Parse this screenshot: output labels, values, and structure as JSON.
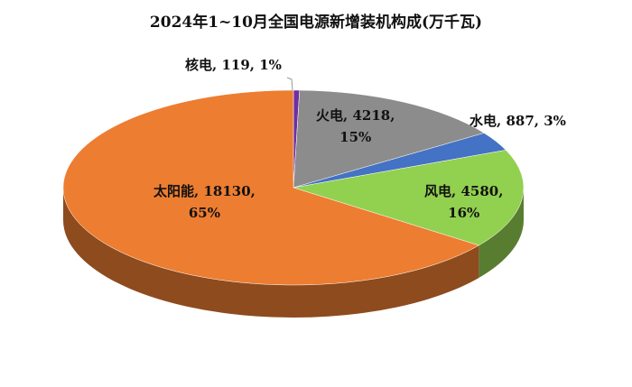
{
  "chart_data": {
    "type": "pie",
    "title": "2024年1~10月全国电源新增装机构成(万千瓦)",
    "three_d": true,
    "start": "12 o'clock, clockwise",
    "slices": [
      {
        "name": "核电",
        "value": 119,
        "percent": "1%",
        "color": "#7030a0",
        "label": "核电, 119, 1%"
      },
      {
        "name": "火电",
        "value": 4218,
        "percent": "15%",
        "color": "#8c8c8c",
        "label": "火电, 4218,",
        "label2": "15%"
      },
      {
        "name": "水电",
        "value": 887,
        "percent": "3%",
        "color": "#4472c4",
        "label": "水电, 887, 3%"
      },
      {
        "name": "风电",
        "value": 4580,
        "percent": "16%",
        "color": "#92d050",
        "label": "风电, 4580,",
        "label2": "16%"
      },
      {
        "name": "太阳能",
        "value": 18130,
        "percent": "65%",
        "color": "#ed7d31",
        "label": "太阳能, 18130,",
        "label2": "65%"
      }
    ]
  }
}
